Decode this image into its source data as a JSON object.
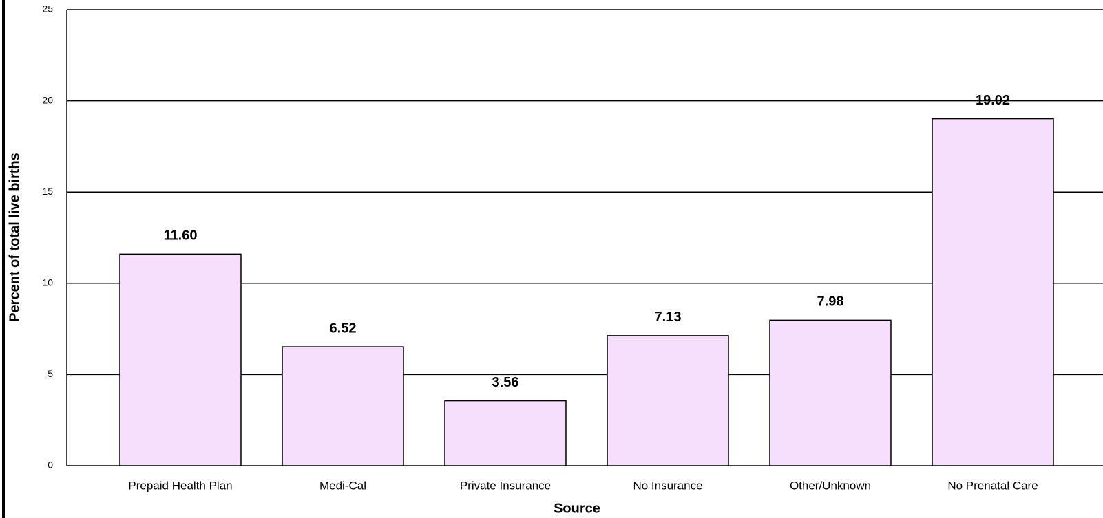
{
  "chart_data": {
    "type": "bar",
    "x_label": "Source",
    "y_label": "Percent of total live births",
    "categories": [
      "Prepaid Health Plan",
      "Medi-Cal",
      "Private Insurance",
      "No Insurance",
      "Other/Unknown",
      "No Prenatal Care"
    ],
    "values": [
      11.6,
      6.52,
      3.56,
      7.13,
      7.98,
      19.02
    ],
    "value_labels": [
      "11.60",
      "6.52",
      "3.56",
      "7.13",
      "7.98",
      "19.02"
    ],
    "color": "#f5dffc",
    "ylim": [
      0,
      25
    ],
    "yticks": [
      0,
      5,
      10,
      15,
      20,
      25
    ],
    "grid": true
  }
}
